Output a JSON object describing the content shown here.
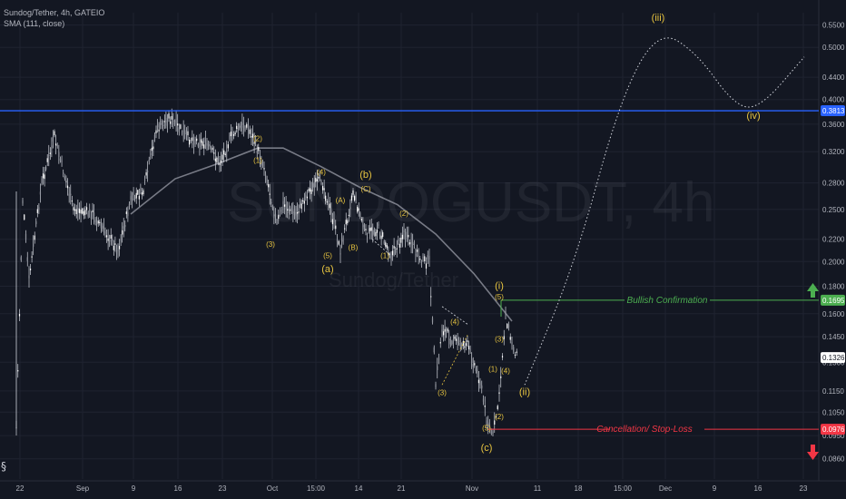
{
  "legend": {
    "symbol_line": "Sundog/Tether, 4h, GATEIO",
    "indicator_line": "SMA (111, close)"
  },
  "watermark": {
    "ticker": "SUNDOGUSDT, 4h",
    "name": "Sundog/Tether"
  },
  "colors": {
    "background": "#131722",
    "resistance_line": "#2962ff",
    "bullish": "#4caf50",
    "cancellation": "#f23645",
    "wave_label": "#e7c440",
    "sma": "#787b86",
    "candles": "#d1d4dc"
  },
  "annotations": {
    "bullish_confirmation": "Bullish Confirmation",
    "cancellation": "Cancellation/ Stop-Loss"
  },
  "chart_data": {
    "type": "line",
    "title": "Sundog/Tether, 4h, GATEIO",
    "y_scale": "log",
    "ylim": [
      0.082,
      0.58
    ],
    "y_ticks": [
      "0.5500",
      "0.5000",
      "0.4400",
      "0.4000",
      "0.3600",
      "0.3200",
      "0.2800",
      "0.2500",
      "0.2200",
      "0.2000",
      "0.1800",
      "0.1600",
      "0.1450",
      "0.1300",
      "0.1150",
      "0.1050",
      "0.0950",
      "0.0860"
    ],
    "x_ticks": [
      "22",
      "Sep",
      "9",
      "16",
      "23",
      "Oct",
      "15:00",
      "14",
      "21",
      "Nov",
      "11",
      "18",
      "15:00",
      "Dec",
      "9",
      "16",
      "23"
    ],
    "price_labels": [
      {
        "value": "0.3813",
        "role": "resistance"
      },
      {
        "value": "0.1695",
        "role": "bullish confirmation"
      },
      {
        "value": "0.1326",
        "role": "last price"
      },
      {
        "value": "0.0976",
        "role": "cancellation"
      }
    ],
    "levels": {
      "resistance": 0.3813,
      "bullish_confirmation": 0.1695,
      "last_price": 0.1326,
      "cancellation": 0.0976
    },
    "price_path": [
      {
        "x": "Aug 22",
        "y": 0.098
      },
      {
        "x": "Aug 23",
        "y": 0.26
      },
      {
        "x": "Aug 24",
        "y": 0.185
      },
      {
        "x": "Aug 26",
        "y": 0.28
      },
      {
        "x": "Aug 28",
        "y": 0.34
      },
      {
        "x": "Aug 31",
        "y": 0.25
      },
      {
        "x": "Sep 3",
        "y": 0.245
      },
      {
        "x": "Sep 7",
        "y": 0.21
      },
      {
        "x": "Sep 9",
        "y": 0.26
      },
      {
        "x": "Sep 11",
        "y": 0.27
      },
      {
        "x": "Sep 13",
        "y": 0.35
      },
      {
        "x": "Sep 15",
        "y": 0.37
      },
      {
        "x": "Sep 18",
        "y": 0.34
      },
      {
        "x": "Sep 21",
        "y": 0.33
      },
      {
        "x": "Sep 23",
        "y": 0.305
      },
      {
        "x": "Sep 25",
        "y": 0.345
      },
      {
        "x": "Sep 27",
        "y": 0.36
      },
      {
        "x": "Sep 28",
        "y": 0.345
      },
      {
        "x": "Sep 30",
        "y": 0.3
      },
      {
        "x": "Oct 2",
        "y": 0.235
      },
      {
        "x": "Oct 3",
        "y": 0.255
      },
      {
        "x": "Oct 5",
        "y": 0.245
      },
      {
        "x": "Oct 7",
        "y": 0.27
      },
      {
        "x": "Oct 9",
        "y": 0.285
      },
      {
        "x": "Oct 11",
        "y": 0.235
      },
      {
        "x": "Oct 12",
        "y": 0.21
      },
      {
        "x": "Oct 14",
        "y": 0.27
      },
      {
        "x": "Oct 16",
        "y": 0.225
      },
      {
        "x": "Oct 18",
        "y": 0.23
      },
      {
        "x": "Oct 20",
        "y": 0.205
      },
      {
        "x": "Oct 22",
        "y": 0.225
      },
      {
        "x": "Oct 25",
        "y": 0.2
      },
      {
        "x": "Oct 26",
        "y": 0.2
      },
      {
        "x": "Oct 27",
        "y": 0.118
      },
      {
        "x": "Oct 28",
        "y": 0.15
      },
      {
        "x": "Oct 30",
        "y": 0.142
      },
      {
        "x": "Nov 1",
        "y": 0.14
      },
      {
        "x": "Nov 3",
        "y": 0.12
      },
      {
        "x": "Nov 4",
        "y": 0.102
      },
      {
        "x": "Nov 5",
        "y": 0.095
      },
      {
        "x": "Nov 6",
        "y": 0.112
      },
      {
        "x": "Nov 7",
        "y": 0.16
      },
      {
        "x": "Nov 8",
        "y": 0.14
      },
      {
        "x": "Nov 9",
        "y": 0.1326
      }
    ],
    "sma_path": [
      {
        "x": "Sep 9",
        "y": 0.245
      },
      {
        "x": "Sep 16",
        "y": 0.285
      },
      {
        "x": "Sep 23",
        "y": 0.305
      },
      {
        "x": "Sep 29",
        "y": 0.325
      },
      {
        "x": "Oct 3",
        "y": 0.325
      },
      {
        "x": "Oct 9",
        "y": 0.3
      },
      {
        "x": "Oct 15",
        "y": 0.275
      },
      {
        "x": "Oct 21",
        "y": 0.255
      },
      {
        "x": "Oct 27",
        "y": 0.225
      },
      {
        "x": "Nov 2",
        "y": 0.19
      },
      {
        "x": "Nov 8",
        "y": 0.155
      }
    ],
    "projection": [
      {
        "x": "Nov 10",
        "y": 0.118
      },
      {
        "x": "Nov 18",
        "y": 0.2
      },
      {
        "x": "Nov 25",
        "y": 0.4
      },
      {
        "x": "Dec 1",
        "y": 0.54
      },
      {
        "x": "Dec 7",
        "y": 0.49
      },
      {
        "x": "Dec 13",
        "y": 0.39
      },
      {
        "x": "Dec 17",
        "y": 0.385
      },
      {
        "x": "Dec 24",
        "y": 0.48
      }
    ],
    "wave_labels": [
      {
        "text": "(2)",
        "x": "Sep 29",
        "y": 0.335,
        "size": "small"
      },
      {
        "text": "(1)",
        "x": "Sep 29",
        "y": 0.305,
        "size": "small"
      },
      {
        "text": "(3)",
        "x": "Oct 1",
        "y": 0.213,
        "size": "small"
      },
      {
        "text": "(4)",
        "x": "Oct 9",
        "y": 0.29,
        "size": "small"
      },
      {
        "text": "(b)",
        "x": "Oct 16",
        "y": 0.286,
        "size": "large"
      },
      {
        "text": "(C)",
        "x": "Oct 16",
        "y": 0.27,
        "size": "small"
      },
      {
        "text": "(A)",
        "x": "Oct 12",
        "y": 0.257,
        "size": "small"
      },
      {
        "text": "(B)",
        "x": "Oct 14",
        "y": 0.21,
        "size": "small"
      },
      {
        "text": "(5)",
        "x": "Oct 10",
        "y": 0.203,
        "size": "small"
      },
      {
        "text": "(a)",
        "x": "Oct 10",
        "y": 0.191,
        "size": "large"
      },
      {
        "text": "(1)",
        "x": "Oct 19",
        "y": 0.203,
        "size": "small"
      },
      {
        "text": "(2)",
        "x": "Oct 22",
        "y": 0.243,
        "size": "small"
      },
      {
        "text": "(4)",
        "x": "Oct 30",
        "y": 0.153,
        "size": "small"
      },
      {
        "text": "(3)",
        "x": "Oct 28",
        "y": 0.113,
        "size": "small"
      },
      {
        "text": "(i)",
        "x": "Nov 6",
        "y": 0.178,
        "size": "large"
      },
      {
        "text": "(5)",
        "x": "Nov 6",
        "y": 0.17,
        "size": "small"
      },
      {
        "text": "(3)",
        "x": "Nov 6",
        "y": 0.142,
        "size": "small"
      },
      {
        "text": "(4)",
        "x": "Nov 7",
        "y": 0.124,
        "size": "small"
      },
      {
        "text": "(1)",
        "x": "Nov 5",
        "y": 0.125,
        "size": "small"
      },
      {
        "text": "(2)",
        "x": "Nov 6",
        "y": 0.102,
        "size": "small"
      },
      {
        "text": "(5)",
        "x": "Nov 4",
        "y": 0.097,
        "size": "small"
      },
      {
        "text": "(c)",
        "x": "Nov 4",
        "y": 0.089,
        "size": "large"
      },
      {
        "text": "(ii)",
        "x": "Nov 10",
        "y": 0.113,
        "size": "large"
      },
      {
        "text": "(iii)",
        "x": "Dec 1",
        "y": 0.56,
        "size": "large"
      },
      {
        "text": "(iv)",
        "x": "Dec 16",
        "y": 0.368,
        "size": "large"
      }
    ]
  }
}
